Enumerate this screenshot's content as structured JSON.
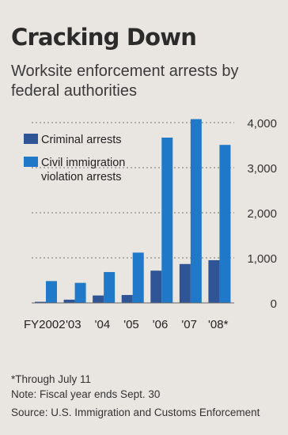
{
  "chart_data": {
    "type": "bar",
    "title": "Cracking Down",
    "subtitle": "Worksite enforcement arrests by federal authorities",
    "categories": [
      "FY2002",
      "'03",
      "'04",
      "'05",
      "'06",
      "'07",
      "'08*"
    ],
    "series": [
      {
        "name": "Criminal arrests",
        "color": "#2f5597",
        "values": [
          25,
          72,
          165,
          176,
          716,
          863,
          948
        ]
      },
      {
        "name": "Civil immigration violation arrests",
        "color": "#1f78c8",
        "values": [
          485,
          445,
          685,
          1116,
          3667,
          4077,
          3505
        ]
      }
    ],
    "yticks": [
      0,
      1000,
      2000,
      3000,
      4000
    ],
    "ytick_labels": [
      "0",
      "1,000",
      "2,000",
      "3,000",
      "4,000"
    ],
    "ylim": [
      0,
      4000
    ],
    "grid": true,
    "legend": "top-left"
  },
  "footnotes": {
    "through": "*Through July 11",
    "note": "Note: Fiscal year ends Sept. 30",
    "source": "Source: U.S. Immigration and Customs Enforcement"
  }
}
